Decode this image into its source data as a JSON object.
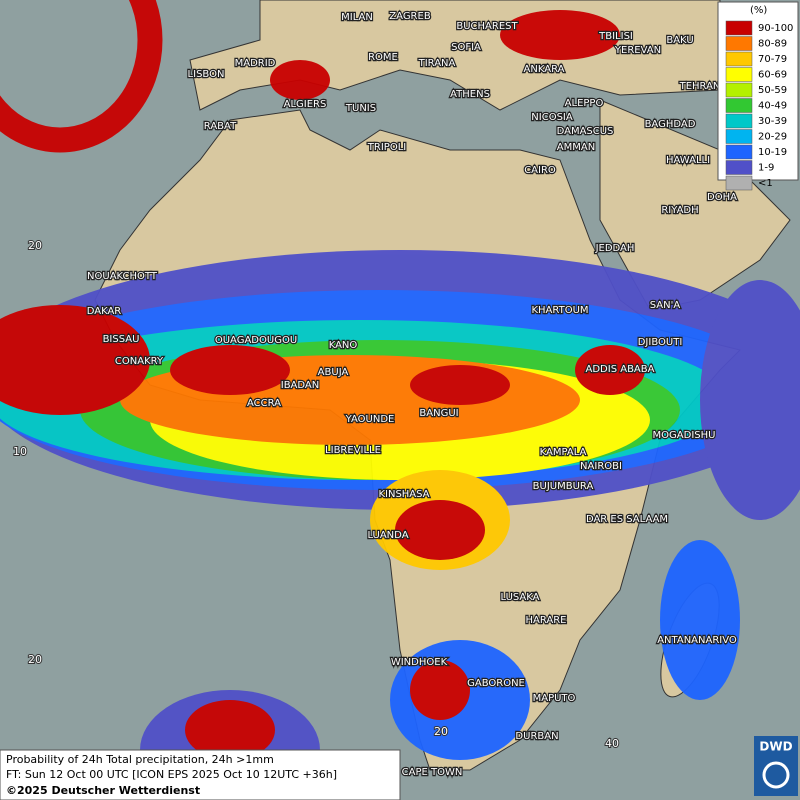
{
  "map": {
    "cities": [
      "MILAN",
      "ZAGREB",
      "BUCHAREST",
      "TBILISI",
      "BAKU",
      "SOFIA",
      "YEREVAN",
      "LISBON",
      "MADRID",
      "ROME",
      "TIRANA",
      "ANKARA",
      "TEHRAN",
      "ATHENS",
      "ALGIERS",
      "TUNIS",
      "ALEPPO",
      "RABAT",
      "NICOSIA",
      "BAGHDAD",
      "TRIPOLI",
      "DAMASCUS",
      "AMMAN",
      "HAWALLI",
      "CAIRO",
      "DOHA",
      "RIYADH",
      "JEDDAH",
      "NOUAKCHOTT",
      "SAN'A",
      "KHARTOUM",
      "DAKAR",
      "DJIBOUTI",
      "BISSAU",
      "OUAGADOUGOU",
      "KANO",
      "CONAKRY",
      "ABUJA",
      "ADDIS ABABA",
      "IBADAN",
      "ACCRA",
      "BANGUI",
      "YAOUNDE",
      "MOGADISHU",
      "LIBREVILLE",
      "KAMPALA",
      "NAIROBI",
      "KINSHASA",
      "BUJUMBURA",
      "DAR ES SALAAM",
      "LUANDA",
      "LUSAKA",
      "HARARE",
      "ANTANANARIVO",
      "WINDHOEK",
      "GABORONE",
      "MAPUTO",
      "DURBAN",
      "CAPE TOWN"
    ],
    "grid_labels": [
      "20",
      "10",
      "20",
      "20",
      "40"
    ],
    "legend": {
      "unit": "(%)",
      "items": [
        {
          "label": "90-100",
          "color": "#c80000"
        },
        {
          "label": "80-89",
          "color": "#ff7800"
        },
        {
          "label": "70-79",
          "color": "#ffc800"
        },
        {
          "label": "60-69",
          "color": "#ffff00"
        },
        {
          "label": "50-59",
          "color": "#b4f000"
        },
        {
          "label": "40-49",
          "color": "#32c832"
        },
        {
          "label": "30-39",
          "color": "#00c8c8"
        },
        {
          "label": "20-29",
          "color": "#00b4f0"
        },
        {
          "label": "10-19",
          "color": "#1e64ff"
        },
        {
          "label": "1-9",
          "color": "#5050c8"
        },
        {
          "label": "<1",
          "color": "#b0b0b0"
        }
      ]
    },
    "footer": {
      "line1": "Probability of 24h Total precipitation, 24h >1mm",
      "line2": "FT: Sun 12 Oct 00 UTC [ICON EPS 2025 Oct 10 12UTC +36h]",
      "line3": "©2025 Deutscher Wetterdienst"
    },
    "logo": "DWD"
  }
}
